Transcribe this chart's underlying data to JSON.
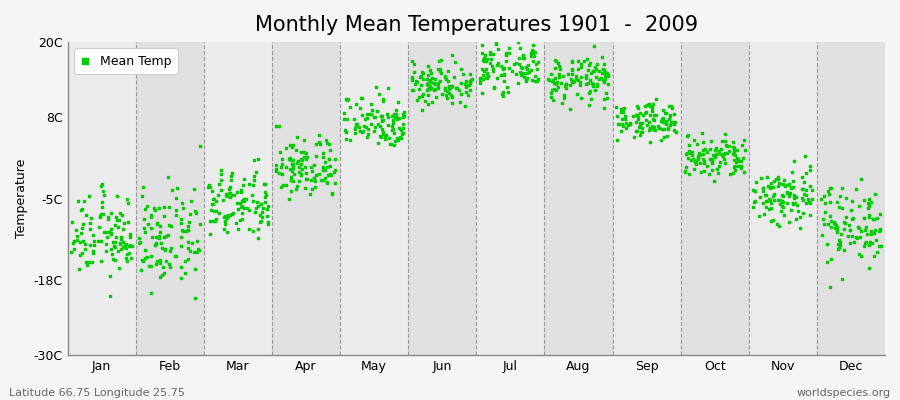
{
  "title": "Monthly Mean Temperatures 1901  -  2009",
  "ylabel": "Temperature",
  "dot_color": "#00CC00",
  "dot_size": 4,
  "ylim": [
    -30,
    20
  ],
  "yticks": [
    -30,
    -18,
    -5,
    8,
    20
  ],
  "ytick_labels": [
    "-30C",
    "-18C",
    "-5C",
    "8C",
    "20C"
  ],
  "months": [
    "Jan",
    "Feb",
    "Mar",
    "Apr",
    "May",
    "Jun",
    "Jul",
    "Aug",
    "Sep",
    "Oct",
    "Nov",
    "Dec"
  ],
  "n_years": 109,
  "mean_temps_by_month": [
    -11.0,
    -11.5,
    -6.0,
    0.0,
    7.5,
    13.5,
    16.0,
    14.0,
    7.5,
    1.5,
    -4.5,
    -9.0
  ],
  "std_temps_by_month": [
    3.2,
    3.8,
    2.8,
    2.5,
    2.2,
    1.8,
    1.8,
    1.8,
    1.4,
    1.8,
    2.5,
    3.2
  ],
  "bg_color": "#F5F5F5",
  "plot_bg_even": "#EBEBEB",
  "plot_bg_odd": "#E0E0E0",
  "grid_color": "#999999",
  "spine_color": "#888888",
  "legend_label": "Mean Temp",
  "footer_left": "Latitude 66.75 Longitude 25.75",
  "footer_right": "worldspecies.org",
  "title_fontsize": 15,
  "axis_fontsize": 9,
  "footer_fontsize": 8,
  "ylabel_fontsize": 9
}
